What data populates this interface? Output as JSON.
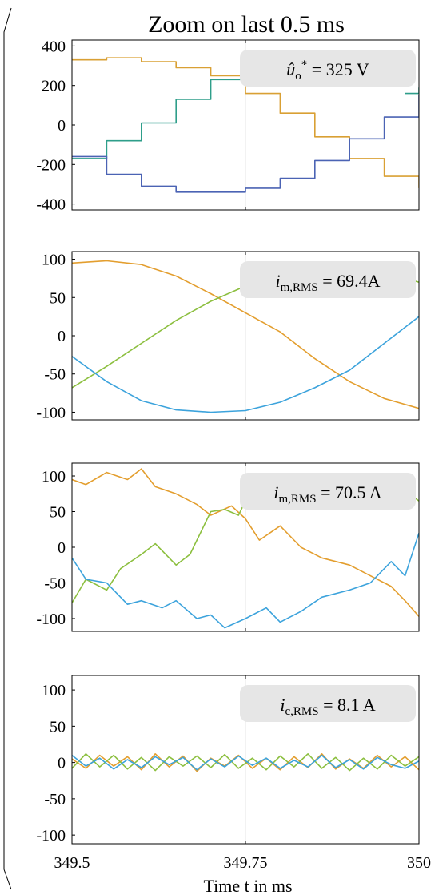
{
  "title": "Zoom on last 0.5 ms",
  "xlabel": "Time t in ms",
  "colors": {
    "orange": "#D9A034",
    "green": "#2E9E8A",
    "blue": "#4B63B4",
    "orange_light": "#E39E2E",
    "green_light": "#8CBF3F",
    "blue_light": "#3CA3DC",
    "annotation_bg": "#E6E6E6"
  },
  "chart_data": [
    {
      "type": "line",
      "panel": "voltage",
      "annotation": {
        "symbol": "û",
        "sub": "o",
        "sup": "*",
        "rest": " = 325 V"
      },
      "xlim": [
        349.5,
        350
      ],
      "ylim": [
        -430,
        430
      ],
      "yticks": [
        -400,
        -200,
        0,
        200,
        400
      ],
      "ytick_labels": [
        "-400",
        "-200",
        "0",
        "200",
        "400"
      ],
      "series": [
        {
          "color_key": "orange",
          "x": [
            349.5,
            349.55,
            349.6,
            349.65,
            349.7,
            349.75,
            349.8,
            349.85,
            349.9,
            349.95,
            350
          ],
          "values": [
            330,
            340,
            320,
            290,
            250,
            160,
            60,
            -60,
            -170,
            -260,
            -320
          ]
        },
        {
          "color_key": "green",
          "x": [
            349.5,
            349.55,
            349.6,
            349.65,
            349.7,
            349.75
          ],
          "values": [
            -170,
            -80,
            10,
            130,
            230,
            280
          ]
        },
        {
          "color_key": "green",
          "x": [
            349.98,
            350
          ],
          "values": [
            160,
            190
          ]
        },
        {
          "color_key": "blue",
          "x": [
            349.5,
            349.55,
            349.6,
            349.65,
            349.7,
            349.75,
            349.8,
            349.85,
            349.9,
            349.95,
            350
          ],
          "values": [
            -160,
            -250,
            -310,
            -340,
            -340,
            -320,
            -270,
            -180,
            -70,
            40,
            150
          ]
        }
      ]
    },
    {
      "type": "line",
      "panel": "grid-current-filtered",
      "annotation": {
        "symbol": "i",
        "sub": "m,RMS",
        "sup": "",
        "rest": " = 69.4A"
      },
      "xlim": [
        349.5,
        350
      ],
      "ylim": [
        -110,
        110
      ],
      "yticks": [
        -100,
        -50,
        0,
        50,
        100
      ],
      "ytick_labels": [
        "-100",
        "-50",
        "0",
        "50",
        "100"
      ],
      "series": [
        {
          "color_key": "orange_light",
          "x": [
            349.5,
            349.55,
            349.6,
            349.65,
            349.7,
            349.75,
            349.8,
            349.85,
            349.9,
            349.95,
            350
          ],
          "values": [
            95,
            98,
            93,
            78,
            55,
            30,
            5,
            -30,
            -60,
            -82,
            -95
          ]
        },
        {
          "color_key": "green_light",
          "x": [
            349.5,
            349.55,
            349.6,
            349.65,
            349.7,
            349.75
          ],
          "values": [
            -68,
            -40,
            -10,
            20,
            45,
            65
          ]
        },
        {
          "color_key": "green_light",
          "x": [
            349.98,
            350
          ],
          "values": [
            75,
            70
          ]
        },
        {
          "color_key": "blue_light",
          "x": [
            349.5,
            349.55,
            349.6,
            349.65,
            349.7,
            349.75,
            349.8,
            349.85,
            349.9,
            349.95,
            350
          ],
          "values": [
            -27,
            -60,
            -85,
            -97,
            -100,
            -98,
            -87,
            -68,
            -45,
            -10,
            25
          ]
        }
      ]
    },
    {
      "type": "line",
      "panel": "grid-current-measured",
      "annotation": {
        "symbol": "i",
        "sub": "m,RMS",
        "sup": "",
        "rest": " = 70.5 A"
      },
      "xlim": [
        349.5,
        350
      ],
      "ylim": [
        -118,
        118
      ],
      "yticks": [
        -100,
        -50,
        0,
        50,
        100
      ],
      "ytick_labels": [
        "-100",
        "-50",
        "0",
        "50",
        "100"
      ],
      "series": [
        {
          "color_key": "orange_light",
          "x": [
            349.5,
            349.52,
            349.55,
            349.58,
            349.6,
            349.62,
            349.65,
            349.68,
            349.7,
            349.73,
            349.75,
            349.77,
            349.8,
            349.83,
            349.86,
            349.9,
            349.93,
            349.96,
            349.98,
            350
          ],
          "values": [
            95,
            88,
            105,
            95,
            110,
            85,
            75,
            60,
            45,
            58,
            40,
            10,
            30,
            0,
            -15,
            -25,
            -40,
            -55,
            -75,
            -97
          ]
        },
        {
          "color_key": "green_light",
          "x": [
            349.5,
            349.52,
            349.55,
            349.57,
            349.6,
            349.62,
            349.65,
            349.67,
            349.7,
            349.72,
            349.74,
            349.75
          ],
          "values": [
            -78,
            -45,
            -60,
            -30,
            -10,
            5,
            -25,
            -10,
            50,
            53,
            45,
            65
          ]
        },
        {
          "color_key": "green_light",
          "x": [
            349.98,
            350
          ],
          "values": [
            80,
            65
          ]
        },
        {
          "color_key": "blue_light",
          "x": [
            349.5,
            349.52,
            349.55,
            349.58,
            349.6,
            349.63,
            349.65,
            349.68,
            349.7,
            349.72,
            349.75,
            349.78,
            349.8,
            349.83,
            349.86,
            349.9,
            349.93,
            349.96,
            349.98,
            350
          ],
          "values": [
            -15,
            -45,
            -50,
            -80,
            -75,
            -85,
            -75,
            -100,
            -95,
            -113,
            -100,
            -85,
            -105,
            -90,
            -70,
            -60,
            -50,
            -20,
            -40,
            20
          ]
        }
      ]
    },
    {
      "type": "line",
      "panel": "capacitor-current",
      "annotation": {
        "symbol": "i",
        "sub": "c,RMS",
        "sup": "",
        "rest": " = 8.1 A"
      },
      "xlim": [
        349.5,
        350
      ],
      "ylim": [
        -112,
        120
      ],
      "yticks": [
        -100,
        -50,
        0,
        50,
        100
      ],
      "ytick_labels": [
        "-100",
        "-50",
        "0",
        "50",
        "100"
      ],
      "xticks": [
        349.5,
        349.75,
        350
      ],
      "xtick_labels": [
        "349.5",
        "349.75",
        "350"
      ],
      "series": [
        {
          "color_key": "orange_light",
          "x": [
            349.5,
            349.52,
            349.54,
            349.56,
            349.58,
            349.6,
            349.62,
            349.64,
            349.66,
            349.68,
            349.7,
            349.72,
            349.74,
            349.76,
            349.78,
            349.8,
            349.82,
            349.84,
            349.86,
            349.88,
            349.9,
            349.92,
            349.94,
            349.96,
            349.98,
            350
          ],
          "values": [
            5,
            -8,
            10,
            -5,
            8,
            -10,
            12,
            -6,
            9,
            -12,
            6,
            -5,
            10,
            -8,
            6,
            -10,
            8,
            -7,
            12,
            -9,
            5,
            -8,
            10,
            -6,
            8,
            -10
          ]
        },
        {
          "color_key": "green_light",
          "x": [
            349.5,
            349.52,
            349.54,
            349.56,
            349.58,
            349.6,
            349.62,
            349.64,
            349.66,
            349.68,
            349.7,
            349.72,
            349.74,
            349.76,
            349.78,
            349.8,
            349.82,
            349.84,
            349.86,
            349.88,
            349.9,
            349.92,
            349.94,
            349.96,
            349.98,
            350
          ],
          "values": [
            -8,
            12,
            -6,
            10,
            -9,
            7,
            -11,
            8,
            -5,
            9,
            -7,
            11,
            -8,
            6,
            -10,
            9,
            -6,
            12,
            -8,
            7,
            -11,
            6,
            -9,
            10,
            -5,
            8
          ]
        },
        {
          "color_key": "blue_light",
          "x": [
            349.5,
            349.52,
            349.54,
            349.56,
            349.58,
            349.6,
            349.62,
            349.64,
            349.66,
            349.68,
            349.7,
            349.72,
            349.74,
            349.76,
            349.78,
            349.8,
            349.82,
            349.84,
            349.86,
            349.88,
            349.9,
            349.92,
            349.94,
            349.96,
            349.98,
            350
          ],
          "values": [
            10,
            -5,
            6,
            -9,
            4,
            -7,
            8,
            -3,
            7,
            -10,
            5,
            -6,
            9,
            -4,
            6,
            -8,
            3,
            -6,
            10,
            -7,
            4,
            -9,
            7,
            -3,
            -8,
            2
          ]
        }
      ]
    }
  ]
}
